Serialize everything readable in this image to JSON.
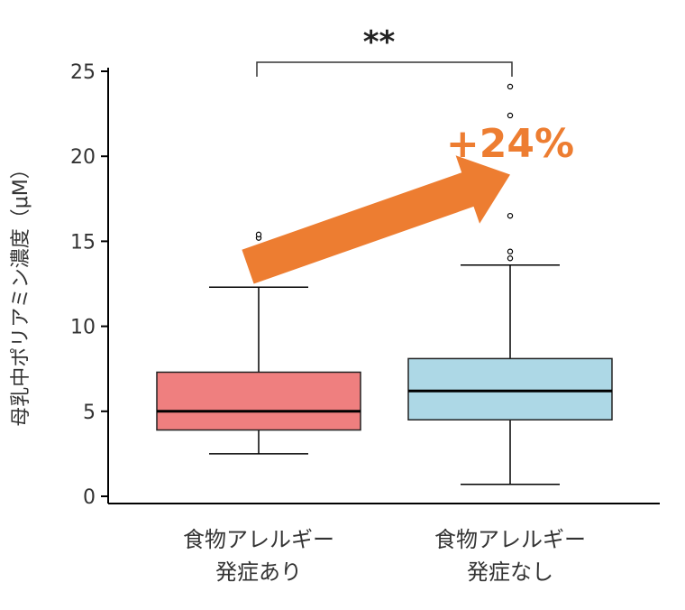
{
  "chart_data": {
    "type": "box",
    "ylabel": "母乳中ポリアミン濃度（μM）",
    "ylim": [
      0,
      25
    ],
    "yticks": [
      0,
      5,
      10,
      15,
      20,
      25
    ],
    "categories": [
      {
        "line1": "食物アレルギー",
        "line2": "発症あり"
      },
      {
        "line1": "食物アレルギー",
        "line2": "発症なし"
      }
    ],
    "boxes": [
      {
        "whisker_low": 2.5,
        "q1": 3.9,
        "median": 5.0,
        "q3": 7.3,
        "whisker_high": 12.3,
        "outliers": [
          15.2,
          15.4
        ],
        "color": "#ef7f7f"
      },
      {
        "whisker_low": 0.7,
        "q1": 4.5,
        "median": 6.2,
        "q3": 8.1,
        "whisker_high": 13.6,
        "outliers": [
          14.0,
          14.4,
          16.5,
          22.4,
          24.1
        ],
        "color": "#add8e6"
      }
    ],
    "significance": "**",
    "annotation": {
      "text": "+24%",
      "color": "#ed7d31",
      "from": [
        0,
        13.5
      ],
      "to": [
        1,
        18.5
      ]
    }
  }
}
